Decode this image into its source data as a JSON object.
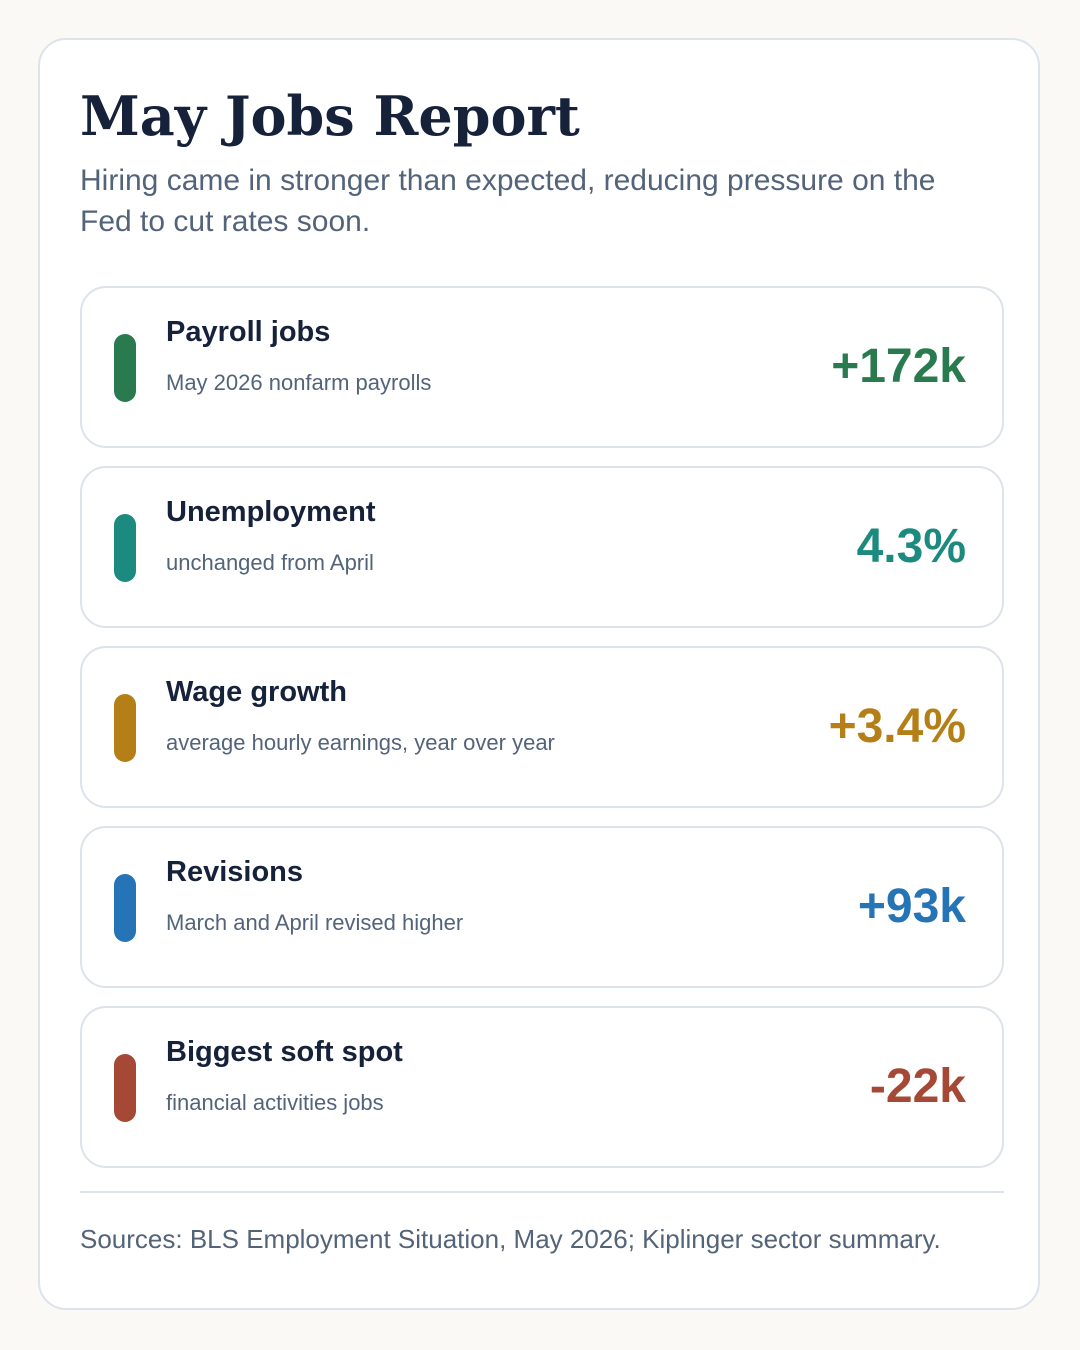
{
  "title": "May Jobs Report",
  "subtitle": "Hiring came in stronger than expected, reducing pressure on the Fed to cut rates soon.",
  "metrics": [
    {
      "label": "Payroll jobs",
      "description": "May 2026 nonfarm payrolls",
      "value": "+172k",
      "color": "#2a7a4f"
    },
    {
      "label": "Unemployment",
      "description": "unchanged from April",
      "value": "4.3%",
      "color": "#1c8a7e"
    },
    {
      "label": "Wage growth",
      "description": "average hourly earnings, year over year",
      "value": "+3.4%",
      "color": "#b57f17"
    },
    {
      "label": "Revisions",
      "description": "March and April revised higher",
      "value": "+93k",
      "color": "#2474b6"
    },
    {
      "label": "Biggest soft spot",
      "description": "financial activities jobs",
      "value": "-22k",
      "color": "#a54835"
    }
  ],
  "sources": "Sources: BLS Employment Situation, May 2026; Kiplinger sector summary."
}
